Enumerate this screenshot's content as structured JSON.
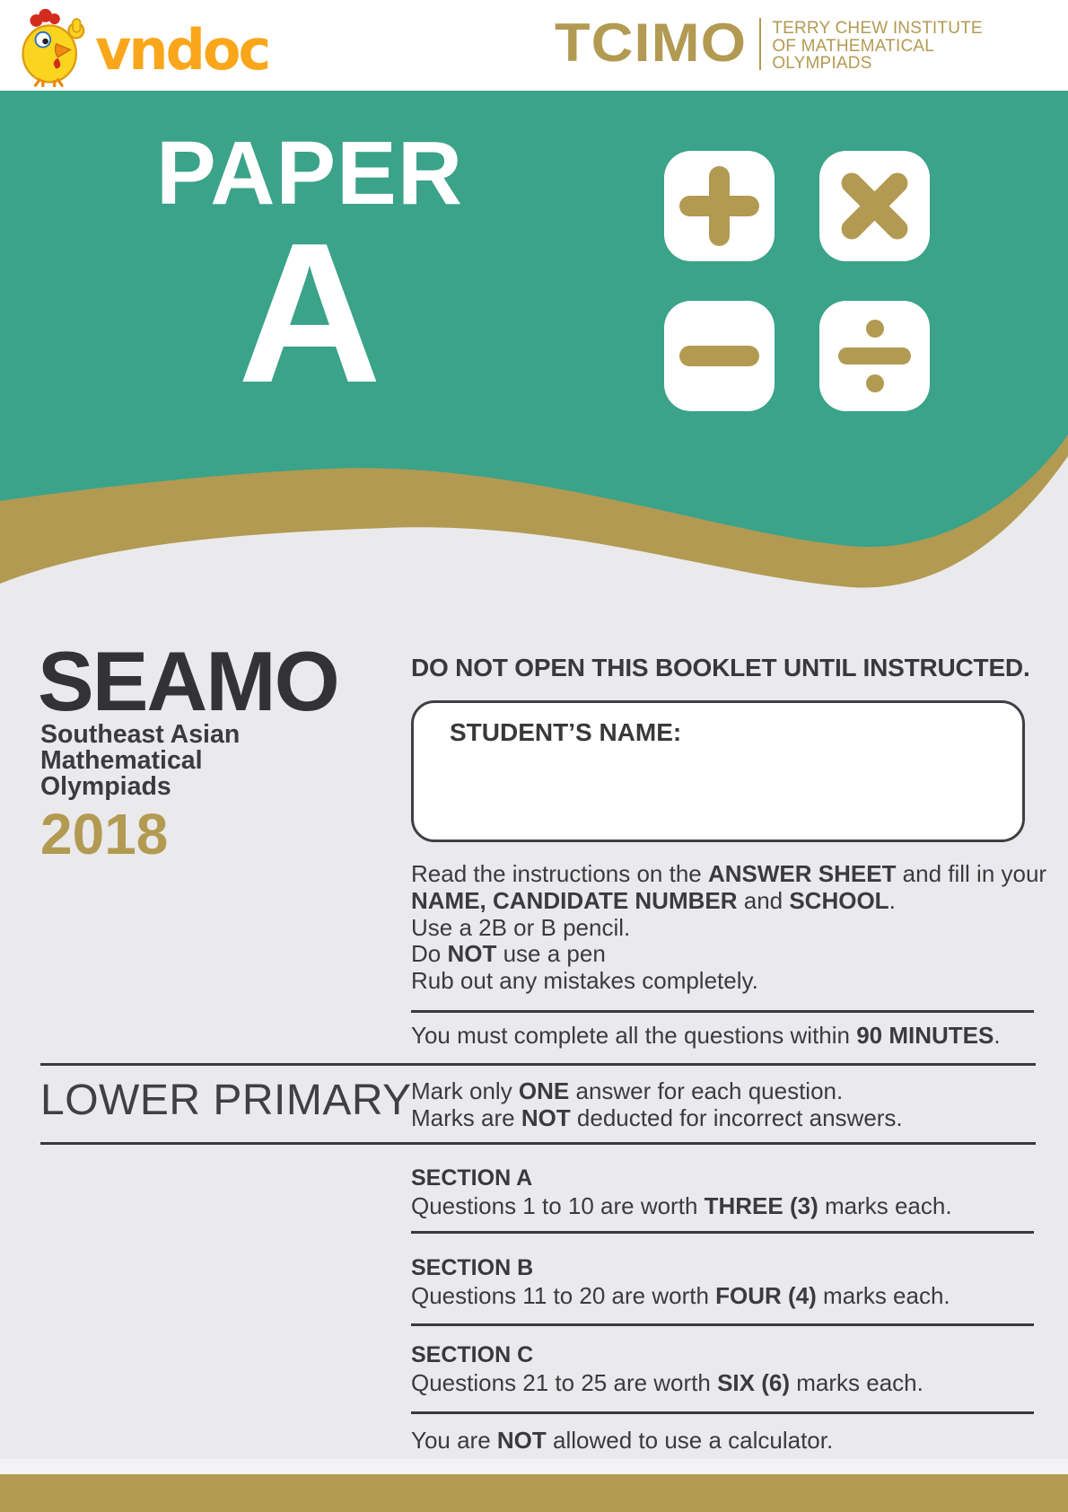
{
  "colors": {
    "teal": "#3aa389",
    "gold": "#b29a52",
    "page_background": "#eaeaec",
    "text_dark": "#3b3b3d",
    "vndoc_orange": "#f9a61b",
    "white": "#ffffff"
  },
  "header": {
    "vndoc_logo_text": "vndoc",
    "tcimo_logo_text": "TCIMO",
    "tcimo_institute_lines": [
      "TERRY CHEW INSTITUTE",
      "OF MATHEMATICAL",
      "OLYMPIADS"
    ]
  },
  "banner": {
    "paper_label": "PAPER",
    "paper_variant": "A",
    "icons": {
      "plus": "+",
      "times": "×",
      "minus": "−",
      "divide": "÷"
    }
  },
  "exam": {
    "acronym": "SEAMO",
    "full_name_lines": [
      "Southeast Asian",
      "Mathematical",
      "Olympiads"
    ],
    "year": "2018",
    "level": "LOWER PRIMARY"
  },
  "instructions": {
    "warning": "DO NOT OPEN THIS BOOKLET UNTIL INSTRUCTED.",
    "student_name_label": "STUDENT’S NAME:",
    "read_lines": [
      [
        {
          "t": "Read the instructions on the ",
          "b": false
        },
        {
          "t": "ANSWER SHEET",
          "b": true
        },
        {
          "t": " and fill in your",
          "b": false
        }
      ],
      [
        {
          "t": "NAME, CANDIDATE NUMBER",
          "b": true
        },
        {
          "t": " and ",
          "b": false
        },
        {
          "t": "SCHOOL",
          "b": true
        },
        {
          "t": ".",
          "b": false
        }
      ],
      [
        {
          "t": "Use a 2B or B pencil.",
          "b": false
        }
      ],
      [
        {
          "t": "Do ",
          "b": false
        },
        {
          "t": "NOT",
          "b": true
        },
        {
          "t": " use a pen",
          "b": false
        }
      ],
      [
        {
          "t": "Rub out any mistakes completely.",
          "b": false
        }
      ]
    ],
    "time_limit": [
      {
        "t": "You must complete all the questions within ",
        "b": false
      },
      {
        "t": "90 MINUTES",
        "b": true
      },
      {
        "t": ".",
        "b": false
      }
    ],
    "marking_lines": [
      [
        {
          "t": "Mark only ",
          "b": false
        },
        {
          "t": "ONE",
          "b": true
        },
        {
          "t": " answer for each question.",
          "b": false
        }
      ],
      [
        {
          "t": "Marks are ",
          "b": false
        },
        {
          "t": "NOT",
          "b": true
        },
        {
          "t": " deducted for incorrect answers.",
          "b": false
        }
      ]
    ],
    "sections": [
      {
        "title": "SECTION A",
        "detail": [
          {
            "t": "Questions 1 to 10 are worth ",
            "b": false
          },
          {
            "t": "THREE (3)",
            "b": true
          },
          {
            "t": " marks each.",
            "b": false
          }
        ]
      },
      {
        "title": "SECTION B",
        "detail": [
          {
            "t": "Questions 11 to 20 are worth ",
            "b": false
          },
          {
            "t": "FOUR (4)",
            "b": true
          },
          {
            "t": " marks each.",
            "b": false
          }
        ]
      },
      {
        "title": "SECTION C",
        "detail": [
          {
            "t": "Questions 21 to 25 are worth ",
            "b": false
          },
          {
            "t": "SIX (6)",
            "b": true
          },
          {
            "t": " marks each.",
            "b": false
          }
        ]
      }
    ],
    "calculator": [
      {
        "t": "You are ",
        "b": false
      },
      {
        "t": "NOT",
        "b": true
      },
      {
        "t": " allowed to use a calculator.",
        "b": false
      }
    ]
  }
}
